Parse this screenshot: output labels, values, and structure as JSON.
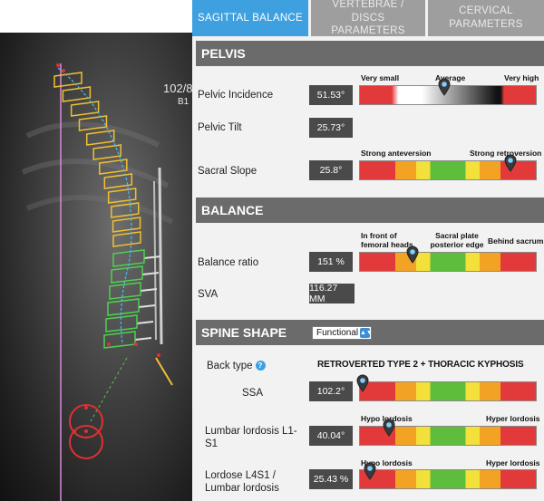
{
  "xray": {
    "label_top": "102/8",
    "label_bottom": "B1"
  },
  "tabs": [
    {
      "label": "SAGITTAL BALANCE",
      "active": true
    },
    {
      "label": "VERTEBRAE / DISCS PARAMETERS",
      "active": false
    },
    {
      "label": "CERVICAL PARAMETERS",
      "active": false
    }
  ],
  "pelvis": {
    "header": "PELVIS",
    "incidence": {
      "label": "Pelvic Incidence",
      "value": "51.53°",
      "scale_left": "Very small",
      "scale_mid": "Average",
      "scale_right": "Very high",
      "marker_fraction": 0.48
    },
    "tilt": {
      "label": "Pelvic Tilt",
      "value": "25.73°"
    },
    "slope": {
      "label": "Sacral Slope",
      "value": "25.8°",
      "scale_left": "Strong anteversion",
      "scale_right": "Strong retroversion",
      "marker_fraction": 0.85
    }
  },
  "balance": {
    "header": "BALANCE",
    "ratio": {
      "label": "Balance ratio",
      "value": "151 %",
      "scale_left": "In front of femoral heads",
      "scale_mid": "Sacral plate posterior edge",
      "scale_right": "Behind sacrum",
      "marker_fraction": 0.3
    },
    "sva": {
      "label": "SVA",
      "value": "116.27 MM"
    }
  },
  "spine_shape": {
    "header": "SPINE SHAPE",
    "dropdown_value": "Functional",
    "back_type": {
      "label": "Back type",
      "value": "RETROVERTED TYPE 2 + THORACIC KYPHOSIS"
    },
    "ssa": {
      "label": "SSA",
      "value": "102.2°",
      "marker_fraction": 0.02
    },
    "lumbar_lordosis": {
      "label_line1": "Lumbar lordosis L1-",
      "label_line2": "S1",
      "value": "40.04°",
      "scale_left": "Hypo lordosis",
      "scale_right": "Hyper lordosis",
      "marker_fraction": 0.17
    },
    "lordose_ratio": {
      "label_line1": "Lordose L4S1 /",
      "label_line2": "Lumbar lordosis",
      "value": "25.43 %",
      "scale_left": "Hypo lordosis",
      "scale_right": "Hyper lordosis",
      "marker_fraction": 0.06
    }
  },
  "colors": {
    "accent": "#3fa0e0",
    "header": "#6b6b6b",
    "red": "#e23a3a",
    "orange": "#f2a323",
    "yellow": "#f4e03a",
    "green": "#5ebd3a"
  }
}
